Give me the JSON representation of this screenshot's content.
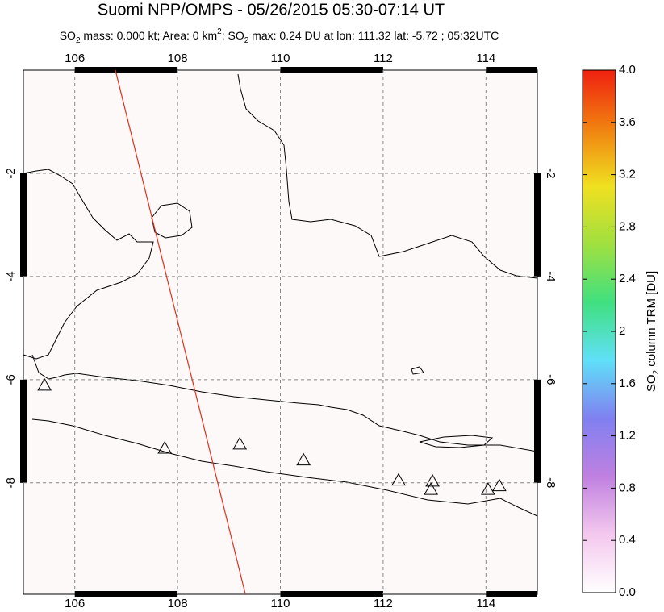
{
  "chart_data": {
    "type": "scatter",
    "title": "Suomi NPP/OMPS - 05/26/2015 05:30-07:14 UT",
    "subtitle": [
      "SO",
      "2",
      " mass: 0.000 kt; Area: 0 km",
      "2",
      "; SO",
      "2",
      " max: 0.24 DU at lon: 111.32 lat: -5.72 ; 05:32UTC"
    ],
    "xlim": [
      105,
      115
    ],
    "ylim": [
      -10.16,
      0
    ],
    "xticks": [
      106,
      108,
      110,
      112,
      114
    ],
    "yticks": [
      -2,
      -4,
      -6,
      -8
    ],
    "grid": true,
    "points": {
      "x": [
        105.41,
        107.75,
        109.21,
        110.45,
        112.3,
        112.96,
        112.93,
        114.04,
        114.26
      ],
      "y": [
        -6.11,
        -7.33,
        -7.25,
        -7.56,
        -7.95,
        -7.97,
        -8.13,
        -8.13,
        -8.06
      ]
    },
    "track": {
      "x": [
        106.79,
        109.32
      ],
      "y": [
        0,
        -10.16
      ],
      "color": "#e0301e"
    },
    "colorbar": {
      "label": [
        "SO",
        "2",
        " column TRM [DU]"
      ],
      "lim": [
        0,
        4
      ],
      "ticks": [
        {
          "value": 0,
          "label": "0.0"
        },
        0.4,
        0.8,
        1.2,
        1.6,
        2.0,
        2.4,
        2.8,
        3.2,
        3.6,
        {
          "value": 4,
          "label": "4.0"
        }
      ],
      "colors": [
        "#ffffff",
        "#f4c8ee",
        "#c080e0",
        "#8080f0",
        "#60e0f8",
        "#40e080",
        "#a0e040",
        "#f0e020",
        "#f08010",
        "#f02010"
      ]
    }
  }
}
